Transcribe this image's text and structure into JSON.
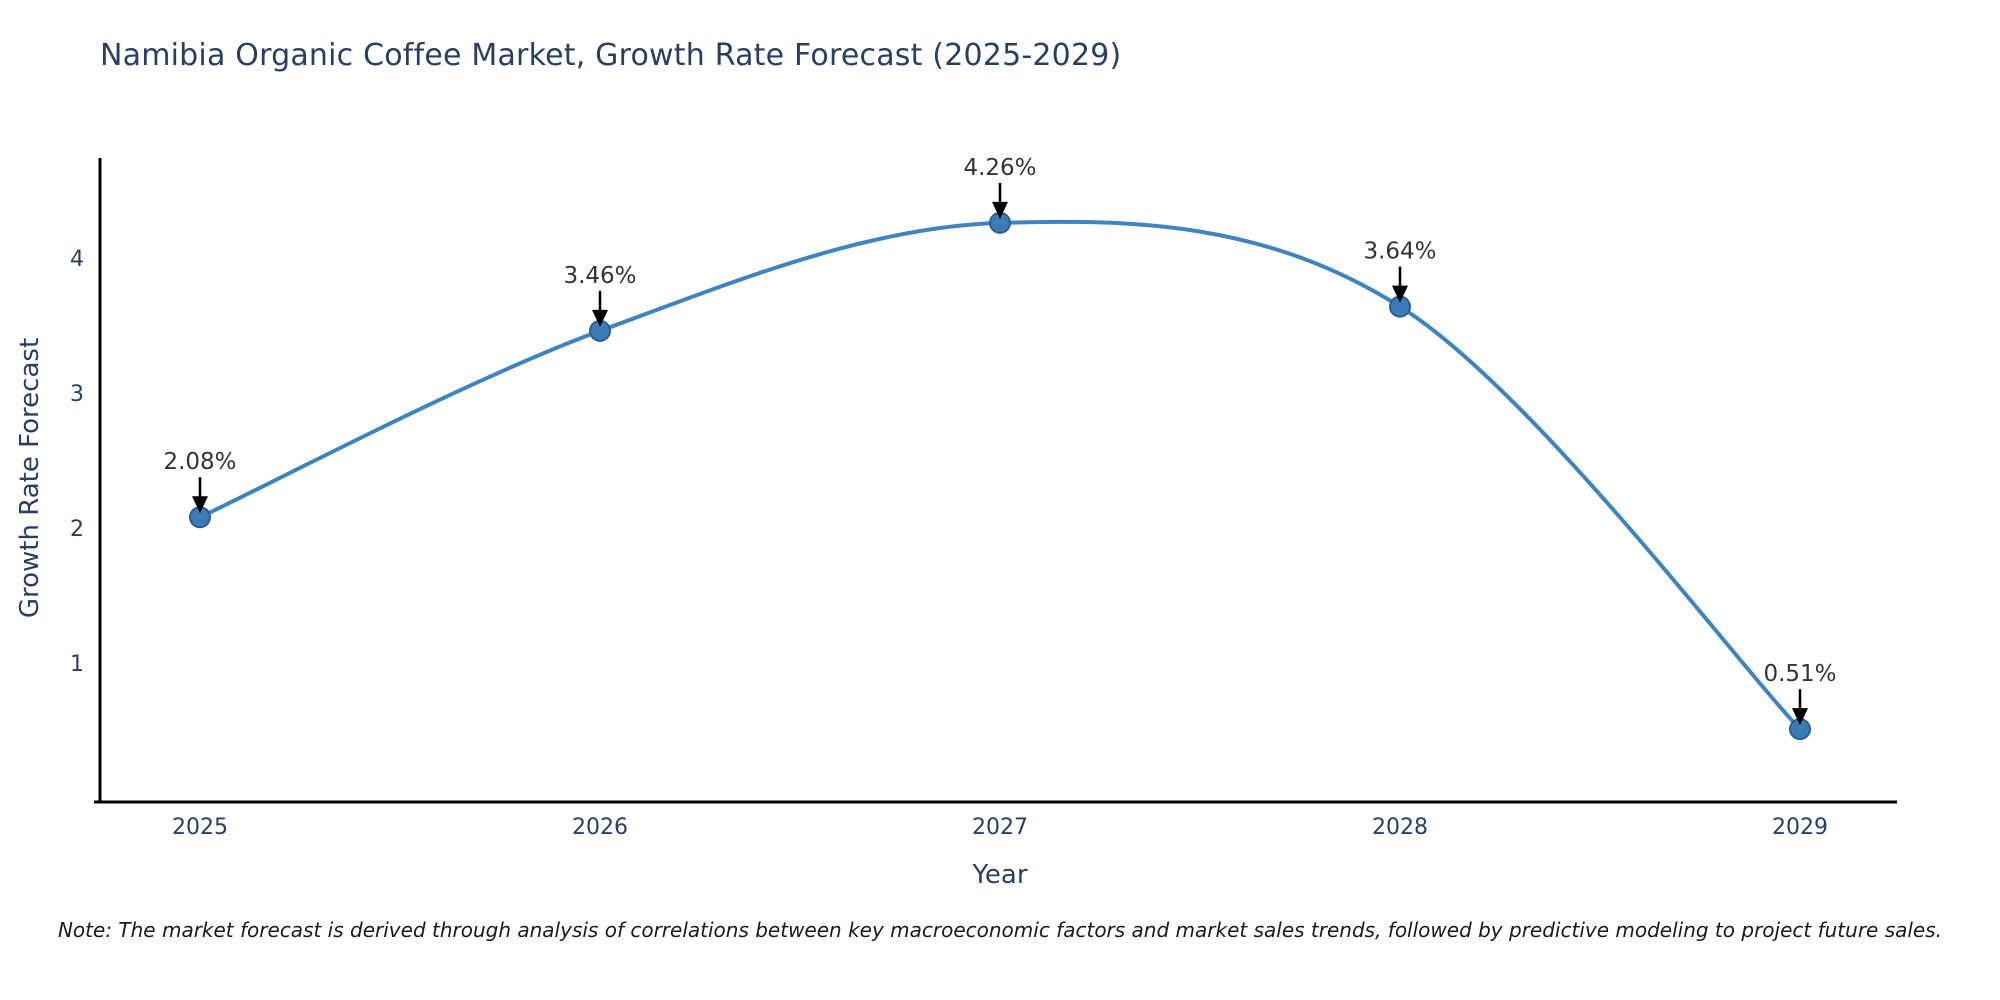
{
  "note": "Note: The market forecast is derived through analysis of correlations between key macroeconomic factors and market sales trends, followed by predictive modeling to project future sales.",
  "chart_data": {
    "type": "line",
    "title": "Namibia Organic Coffee Market, Growth Rate Forecast (2025-2029)",
    "xlabel": "Year",
    "ylabel": "Growth Rate Forecast",
    "categories": [
      "2025",
      "2026",
      "2027",
      "2028",
      "2029"
    ],
    "values": [
      2.08,
      3.46,
      4.26,
      3.64,
      0.51
    ],
    "point_labels": [
      "2.08%",
      "3.46%",
      "4.26%",
      "3.64%",
      "0.51%"
    ],
    "ytick_labels": [
      "1",
      "2",
      "3",
      "4"
    ],
    "ytick_values": [
      1,
      2,
      3,
      4
    ],
    "ylim": [
      0,
      4.75
    ],
    "grid": false,
    "legend": "none",
    "line_style": "smooth-spline",
    "colors": {
      "line": "#4084bd",
      "marker_fill": "#3c7bb7",
      "marker_edge": "#2a5f8e",
      "axis": "#000000",
      "tick_text": "#2a3f5f",
      "title_text": "#2a3f5f",
      "annotation_text": "#333333",
      "annotation_arrow": "#000000",
      "background": "#ffffff"
    }
  }
}
